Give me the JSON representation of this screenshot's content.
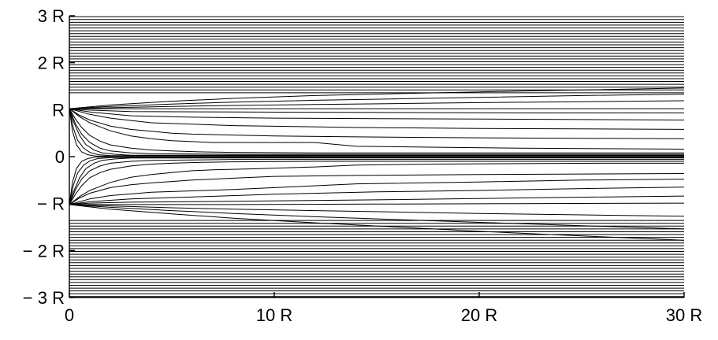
{
  "chart_data": {
    "type": "line",
    "title": "",
    "xlabel": "",
    "ylabel": "",
    "xlim": [
      0,
      30
    ],
    "ylim": [
      -3,
      3
    ],
    "grid": false,
    "x_ticks": [
      {
        "value": 0,
        "label": "0"
      },
      {
        "value": 10,
        "label": "10 R"
      },
      {
        "value": 20,
        "label": "20 R"
      },
      {
        "value": 30,
        "label": "30 R"
      }
    ],
    "y_ticks": [
      {
        "value": 3,
        "label": "3 R"
      },
      {
        "value": 2,
        "label": "2 R"
      },
      {
        "value": 1,
        "label": "R"
      },
      {
        "value": 0,
        "label": "0"
      },
      {
        "value": -1,
        "label": "− R"
      },
      {
        "value": -2,
        "label": "− 2 R"
      },
      {
        "value": -3,
        "label": "− 3 R"
      }
    ],
    "series_color": "#000000",
    "series": [
      {
        "x": [
          0,
          30
        ],
        "y": [
          2.98,
          2.98
        ]
      },
      {
        "x": [
          0,
          30
        ],
        "y": [
          2.92,
          2.92
        ]
      },
      {
        "x": [
          0,
          30
        ],
        "y": [
          2.86,
          2.86
        ]
      },
      {
        "x": [
          0,
          30
        ],
        "y": [
          2.8,
          2.8
        ]
      },
      {
        "x": [
          0,
          30
        ],
        "y": [
          2.74,
          2.74
        ]
      },
      {
        "x": [
          0,
          30
        ],
        "y": [
          2.68,
          2.68
        ]
      },
      {
        "x": [
          0,
          30
        ],
        "y": [
          2.62,
          2.62
        ]
      },
      {
        "x": [
          0,
          30
        ],
        "y": [
          2.56,
          2.56
        ]
      },
      {
        "x": [
          0,
          30
        ],
        "y": [
          2.5,
          2.5
        ]
      },
      {
        "x": [
          0,
          30
        ],
        "y": [
          2.44,
          2.44
        ]
      },
      {
        "x": [
          0,
          30
        ],
        "y": [
          2.38,
          2.38
        ]
      },
      {
        "x": [
          0,
          30
        ],
        "y": [
          2.32,
          2.32
        ]
      },
      {
        "x": [
          0,
          30
        ],
        "y": [
          2.26,
          2.26
        ]
      },
      {
        "x": [
          0,
          30
        ],
        "y": [
          2.2,
          2.2
        ]
      },
      {
        "x": [
          0,
          30
        ],
        "y": [
          2.14,
          2.14
        ]
      },
      {
        "x": [
          0,
          30
        ],
        "y": [
          2.08,
          2.08
        ]
      },
      {
        "x": [
          0,
          30
        ],
        "y": [
          2.02,
          2.02
        ]
      },
      {
        "x": [
          0,
          30
        ],
        "y": [
          1.96,
          1.96
        ]
      },
      {
        "x": [
          0,
          30
        ],
        "y": [
          1.9,
          1.9
        ]
      },
      {
        "x": [
          0,
          30
        ],
        "y": [
          1.84,
          1.84
        ]
      },
      {
        "x": [
          0,
          30
        ],
        "y": [
          1.78,
          1.78
        ]
      },
      {
        "x": [
          0,
          30
        ],
        "y": [
          1.72,
          1.72
        ]
      },
      {
        "x": [
          0,
          30
        ],
        "y": [
          1.66,
          1.66
        ]
      },
      {
        "x": [
          0,
          30
        ],
        "y": [
          1.6,
          1.6
        ]
      },
      {
        "x": [
          0,
          30
        ],
        "y": [
          1.54,
          1.54
        ]
      },
      {
        "x": [
          0,
          30
        ],
        "y": [
          1.48,
          1.48
        ]
      },
      {
        "x": [
          0,
          30
        ],
        "y": [
          1.42,
          1.42
        ]
      },
      {
        "x": [
          0,
          30
        ],
        "y": [
          1.36,
          1.36
        ]
      },
      {
        "x": [
          0,
          2,
          5,
          8,
          12,
          16,
          20,
          25,
          30
        ],
        "y": [
          1.02,
          1.1,
          1.18,
          1.24,
          1.3,
          1.34,
          1.38,
          1.42,
          1.46
        ]
      },
      {
        "x": [
          0,
          2,
          5,
          8,
          12,
          16,
          20,
          25,
          30
        ],
        "y": [
          1.02,
          1.07,
          1.12,
          1.16,
          1.2,
          1.23,
          1.26,
          1.3,
          1.33
        ]
      },
      {
        "x": [
          0,
          2,
          5,
          8,
          12,
          16,
          20,
          25,
          30
        ],
        "y": [
          1.02,
          1.04,
          1.07,
          1.09,
          1.11,
          1.13,
          1.15,
          1.17,
          1.19
        ]
      },
      {
        "x": [
          0,
          3,
          8,
          15,
          22,
          30
        ],
        "y": [
          1.02,
          1.02,
          1.02,
          1.02,
          1.02,
          1.02
        ]
      },
      {
        "x": [
          0,
          1,
          3,
          8,
          15,
          22,
          30
        ],
        "y": [
          1.02,
          0.99,
          0.96,
          0.95,
          0.94,
          0.93,
          0.93
        ]
      },
      {
        "x": [
          0,
          1,
          3,
          6,
          10,
          15,
          20,
          25,
          30
        ],
        "y": [
          1.02,
          0.95,
          0.87,
          0.84,
          0.82,
          0.81,
          0.8,
          0.79,
          0.78
        ]
      },
      {
        "x": [
          0,
          1,
          2,
          4,
          8,
          14,
          20,
          25,
          30
        ],
        "y": [
          1.02,
          0.9,
          0.82,
          0.72,
          0.66,
          0.62,
          0.6,
          0.59,
          0.58
        ]
      },
      {
        "x": [
          0,
          0.5,
          1,
          2,
          3,
          4,
          5,
          6,
          8,
          10,
          14,
          20,
          25,
          30
        ],
        "y": [
          1.02,
          0.88,
          0.78,
          0.65,
          0.58,
          0.54,
          0.5,
          0.48,
          0.46,
          0.44,
          0.42,
          0.4,
          0.39,
          0.38
        ]
      },
      {
        "x": [
          0,
          0.5,
          1,
          2,
          3,
          4,
          5,
          6,
          7,
          9,
          12,
          14,
          18,
          22,
          26,
          30
        ],
        "y": [
          1.02,
          0.85,
          0.72,
          0.55,
          0.44,
          0.38,
          0.34,
          0.32,
          0.3,
          0.3,
          0.3,
          0.22,
          0.2,
          0.18,
          0.17,
          0.16
        ]
      },
      {
        "x": [
          0,
          0.3,
          0.6,
          1,
          1.5,
          2,
          3,
          4,
          5,
          6.5,
          8,
          12,
          20,
          30
        ],
        "y": [
          1.02,
          0.8,
          0.62,
          0.45,
          0.33,
          0.25,
          0.18,
          0.14,
          0.12,
          0.1,
          0.09,
          0.08,
          0.08,
          0.08
        ]
      },
      {
        "x": [
          0,
          0.3,
          0.6,
          1,
          1.5,
          2,
          3,
          4,
          8,
          30
        ],
        "y": [
          1.02,
          0.7,
          0.48,
          0.3,
          0.18,
          0.12,
          0.08,
          0.06,
          0.05,
          0.05
        ]
      },
      {
        "x": [
          0,
          0.2,
          0.5,
          0.8,
          1.2,
          1.6,
          2.2,
          3,
          30
        ],
        "y": [
          1.02,
          0.75,
          0.45,
          0.26,
          0.14,
          0.08,
          0.05,
          0.03,
          0.03
        ]
      },
      {
        "x": [
          0,
          0.2,
          0.4,
          0.7,
          1,
          1.4,
          2,
          30
        ],
        "y": [
          1.02,
          0.6,
          0.35,
          0.18,
          0.09,
          0.04,
          0.02,
          0.02
        ]
      },
      {
        "x": [
          0,
          0.15,
          0.35,
          0.6,
          0.9,
          1.3,
          30
        ],
        "y": [
          1.02,
          0.55,
          0.25,
          0.1,
          0.04,
          0.01,
          0.01
        ]
      },
      {
        "x": [
          0,
          0.15,
          0.35,
          0.6,
          0.9,
          1.3,
          30
        ],
        "y": [
          -1.02,
          -0.55,
          -0.25,
          -0.1,
          -0.04,
          -0.01,
          -0.01
        ]
      },
      {
        "x": [
          0,
          0.2,
          0.4,
          0.7,
          1,
          1.4,
          2,
          30
        ],
        "y": [
          -1.02,
          -0.6,
          -0.35,
          -0.18,
          -0.09,
          -0.04,
          -0.02,
          -0.02
        ]
      },
      {
        "x": [
          0,
          0.2,
          0.5,
          0.8,
          1.2,
          1.6,
          2.2,
          3,
          30
        ],
        "y": [
          -1.02,
          -0.75,
          -0.45,
          -0.26,
          -0.14,
          -0.08,
          -0.05,
          -0.03,
          -0.03
        ]
      },
      {
        "x": [
          0,
          0.3,
          0.6,
          1,
          1.5,
          2,
          3,
          4,
          8,
          30
        ],
        "y": [
          -1.02,
          -0.7,
          -0.48,
          -0.3,
          -0.2,
          -0.14,
          -0.1,
          -0.08,
          -0.06,
          -0.06
        ]
      },
      {
        "x": [
          0,
          0.3,
          0.6,
          1,
          1.5,
          2,
          3,
          4,
          5,
          6.5,
          8,
          12,
          20,
          30
        ],
        "y": [
          -1.02,
          -0.8,
          -0.62,
          -0.45,
          -0.34,
          -0.27,
          -0.2,
          -0.16,
          -0.14,
          -0.12,
          -0.11,
          -0.1,
          -0.1,
          -0.1
        ]
      },
      {
        "x": [
          0,
          0.5,
          1,
          2,
          3,
          4,
          5,
          6,
          7,
          9,
          12,
          14,
          18,
          22,
          26,
          30
        ],
        "y": [
          -1.02,
          -0.85,
          -0.72,
          -0.55,
          -0.44,
          -0.38,
          -0.34,
          -0.3,
          -0.28,
          -0.26,
          -0.22,
          -0.18,
          -0.16,
          -0.15,
          -0.14,
          -0.14
        ]
      },
      {
        "x": [
          0,
          0.5,
          1,
          2,
          3,
          4,
          5,
          6,
          8,
          10,
          14,
          20,
          25,
          30
        ],
        "y": [
          -1.02,
          -0.88,
          -0.78,
          -0.66,
          -0.6,
          -0.56,
          -0.53,
          -0.5,
          -0.46,
          -0.42,
          -0.4,
          -0.38,
          -0.37,
          -0.36
        ]
      },
      {
        "x": [
          0,
          1,
          2,
          4,
          8,
          14,
          20,
          25,
          30
        ],
        "y": [
          -1.02,
          -0.9,
          -0.83,
          -0.76,
          -0.7,
          -0.58,
          -0.54,
          -0.5,
          -0.48
        ]
      },
      {
        "x": [
          0,
          1,
          3,
          6,
          10,
          15,
          20,
          25,
          30
        ],
        "y": [
          -1.02,
          -0.96,
          -0.9,
          -0.86,
          -0.8,
          -0.75,
          -0.72,
          -0.68,
          -0.65
        ]
      },
      {
        "x": [
          0,
          1,
          3,
          8,
          15,
          22,
          30
        ],
        "y": [
          -1.02,
          -0.99,
          -0.97,
          -0.95,
          -0.92,
          -0.88,
          -0.84
        ]
      },
      {
        "x": [
          0,
          3,
          8,
          15,
          22,
          30
        ],
        "y": [
          -1.02,
          -1.02,
          -1.02,
          -1.01,
          -1.0,
          -0.99
        ]
      },
      {
        "x": [
          0,
          2,
          5,
          8,
          12,
          16,
          20,
          25,
          30
        ],
        "y": [
          -1.02,
          -1.05,
          -1.09,
          -1.12,
          -1.15,
          -1.18,
          -1.21,
          -1.24,
          -1.27
        ]
      },
      {
        "x": [
          0,
          2,
          5,
          8,
          12,
          16,
          20,
          25,
          30
        ],
        "y": [
          -1.02,
          -1.08,
          -1.15,
          -1.21,
          -1.28,
          -1.34,
          -1.4,
          -1.47,
          -1.54
        ]
      },
      {
        "x": [
          0,
          2,
          5,
          8,
          12,
          16,
          20,
          25,
          30
        ],
        "y": [
          -1.02,
          -1.12,
          -1.22,
          -1.31,
          -1.41,
          -1.5,
          -1.59,
          -1.69,
          -1.78
        ]
      },
      {
        "x": [
          0,
          30
        ],
        "y": [
          -1.36,
          -1.36
        ]
      },
      {
        "x": [
          0,
          30
        ],
        "y": [
          -1.42,
          -1.42
        ]
      },
      {
        "x": [
          0,
          30
        ],
        "y": [
          -1.48,
          -1.48
        ]
      },
      {
        "x": [
          0,
          30
        ],
        "y": [
          -1.54,
          -1.54
        ]
      },
      {
        "x": [
          0,
          30
        ],
        "y": [
          -1.6,
          -1.6
        ]
      },
      {
        "x": [
          0,
          30
        ],
        "y": [
          -1.66,
          -1.66
        ]
      },
      {
        "x": [
          0,
          30
        ],
        "y": [
          -1.72,
          -1.72
        ]
      },
      {
        "x": [
          0,
          30
        ],
        "y": [
          -1.78,
          -1.78
        ]
      },
      {
        "x": [
          0,
          30
        ],
        "y": [
          -1.84,
          -1.84
        ]
      },
      {
        "x": [
          0,
          30
        ],
        "y": [
          -1.9,
          -1.9
        ]
      },
      {
        "x": [
          0,
          30
        ],
        "y": [
          -1.96,
          -1.96
        ]
      },
      {
        "x": [
          0,
          30
        ],
        "y": [
          -2.02,
          -2.02
        ]
      },
      {
        "x": [
          0,
          30
        ],
        "y": [
          -2.08,
          -2.08
        ]
      },
      {
        "x": [
          0,
          30
        ],
        "y": [
          -2.14,
          -2.14
        ]
      },
      {
        "x": [
          0,
          30
        ],
        "y": [
          -2.2,
          -2.2
        ]
      },
      {
        "x": [
          0,
          30
        ],
        "y": [
          -2.26,
          -2.26
        ]
      },
      {
        "x": [
          0,
          30
        ],
        "y": [
          -2.32,
          -2.32
        ]
      },
      {
        "x": [
          0,
          30
        ],
        "y": [
          -2.38,
          -2.38
        ]
      },
      {
        "x": [
          0,
          30
        ],
        "y": [
          -2.44,
          -2.44
        ]
      },
      {
        "x": [
          0,
          30
        ],
        "y": [
          -2.5,
          -2.5
        ]
      },
      {
        "x": [
          0,
          30
        ],
        "y": [
          -2.56,
          -2.56
        ]
      },
      {
        "x": [
          0,
          30
        ],
        "y": [
          -2.62,
          -2.62
        ]
      },
      {
        "x": [
          0,
          30
        ],
        "y": [
          -2.68,
          -2.68
        ]
      },
      {
        "x": [
          0,
          30
        ],
        "y": [
          -2.74,
          -2.74
        ]
      },
      {
        "x": [
          0,
          30
        ],
        "y": [
          -2.8,
          -2.8
        ]
      },
      {
        "x": [
          0,
          30
        ],
        "y": [
          -2.86,
          -2.86
        ]
      },
      {
        "x": [
          0,
          30
        ],
        "y": [
          -2.92,
          -2.92
        ]
      },
      {
        "x": [
          0,
          30
        ],
        "y": [
          -2.98,
          -2.98
        ]
      }
    ]
  }
}
